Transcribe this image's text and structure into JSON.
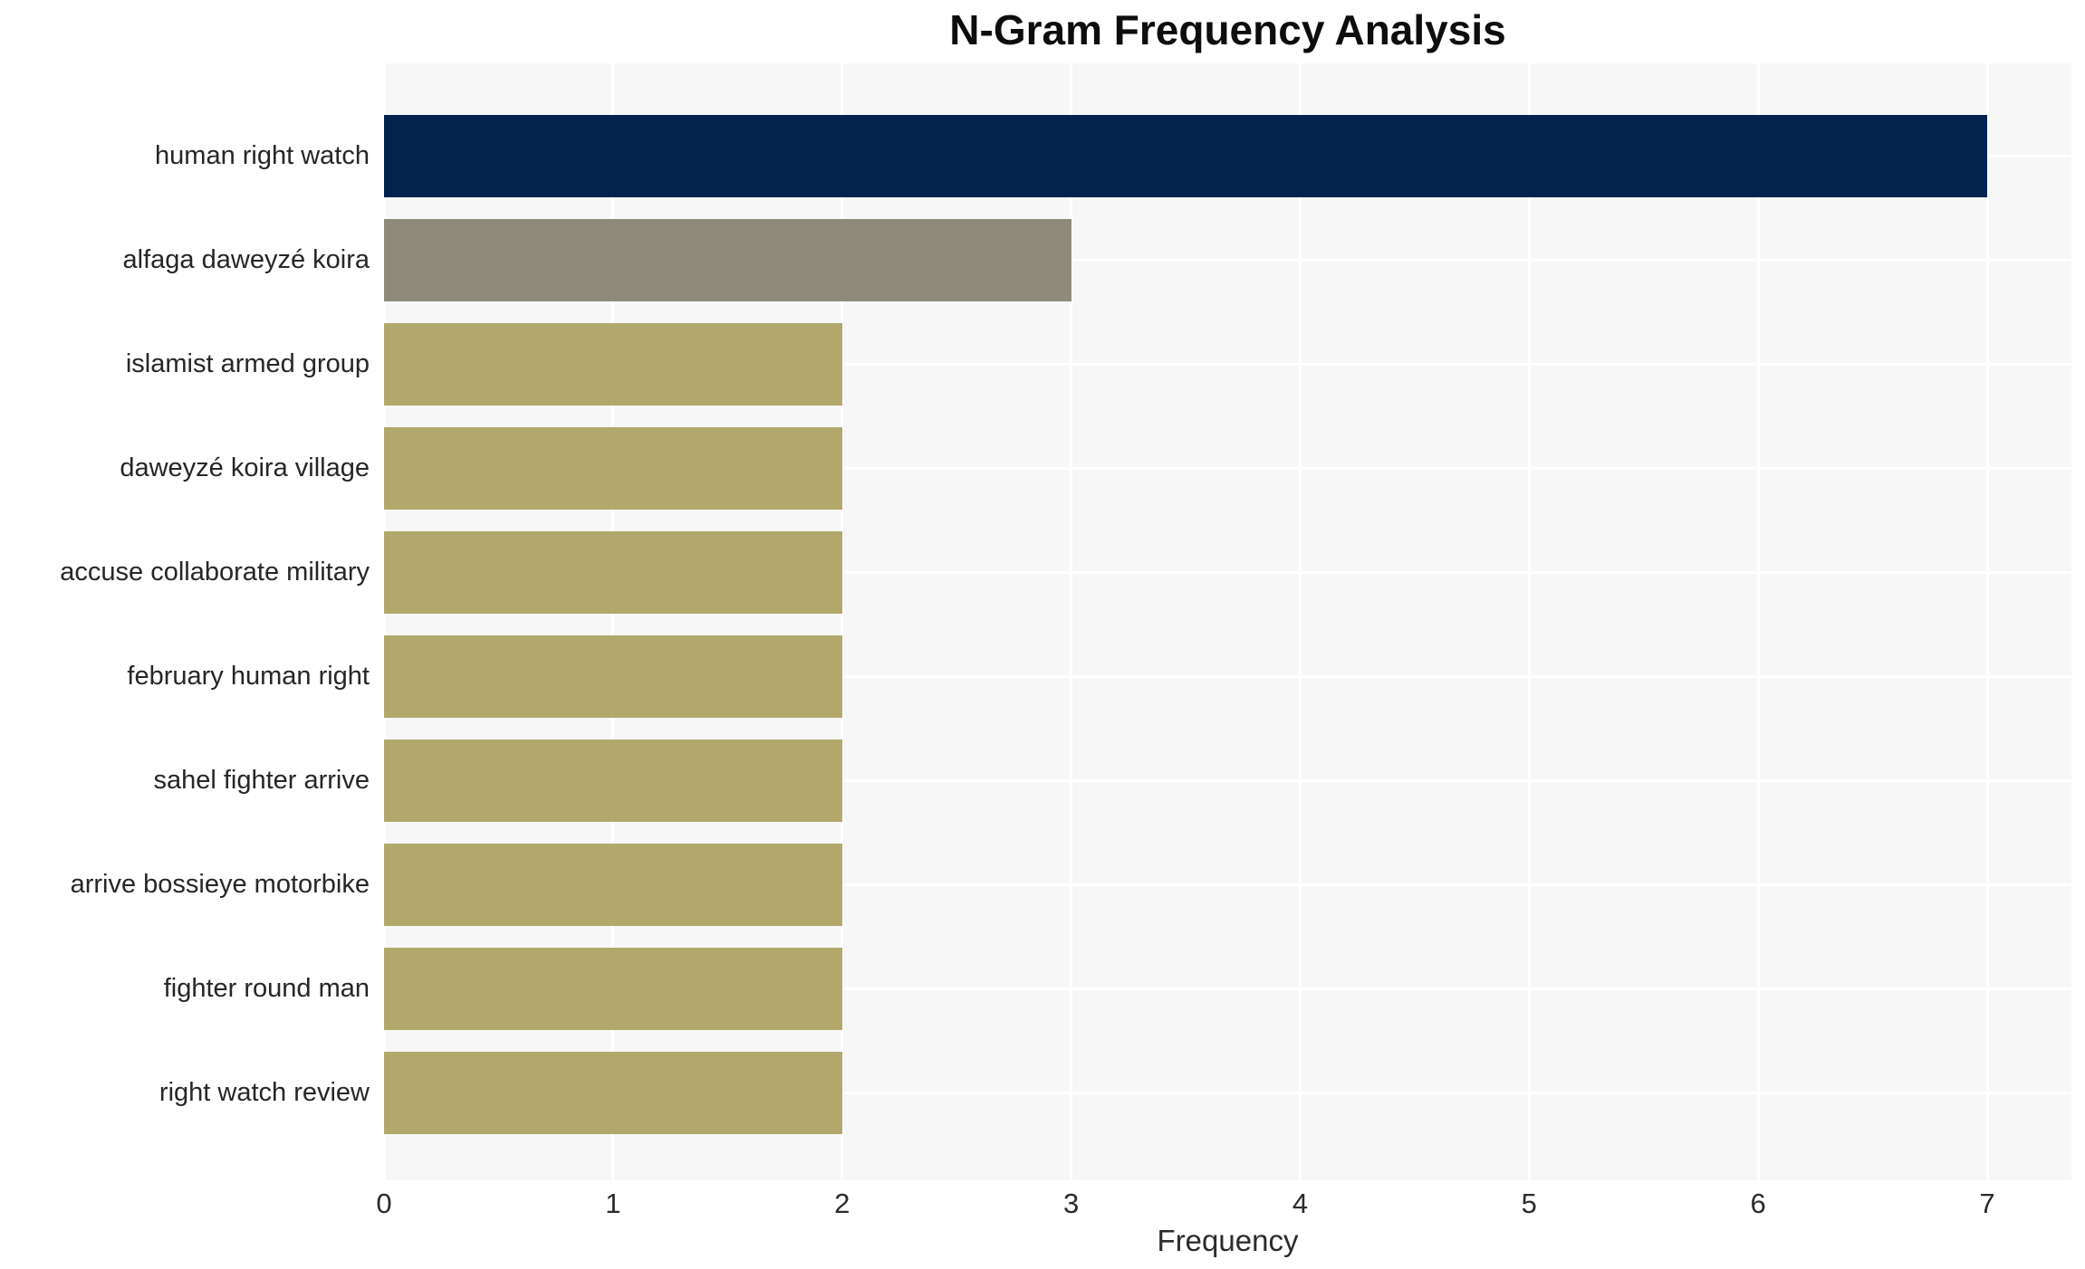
{
  "title": "N-Gram Frequency Analysis",
  "chart_data": {
    "type": "bar",
    "orientation": "horizontal",
    "title": "N-Gram Frequency Analysis",
    "categories": [
      "human right watch",
      "alfaga daweyzé koira",
      "islamist armed group",
      "daweyzé koira village",
      "accuse collaborate military",
      "february human right",
      "sahel fighter arrive",
      "arrive bossieye motorbike",
      "fighter round man",
      "right watch review"
    ],
    "values": [
      7,
      3,
      2,
      2,
      2,
      2,
      2,
      2,
      2,
      2
    ],
    "bar_colors": [
      "#03234e",
      "#8f897b",
      "#b2a86c",
      "#b2a86c",
      "#b2a86c",
      "#b2a86c",
      "#b2a86c",
      "#b2a86c",
      "#b2a86c",
      "#b2a86c"
    ],
    "xlabel": "Frequency",
    "ylabel": "",
    "x_ticks": [
      "0",
      "1",
      "2",
      "3",
      "4",
      "5",
      "6",
      "7"
    ],
    "xlim": [
      0,
      7.37
    ],
    "grid": true,
    "legend": false,
    "panel_color": "#f7f7f7",
    "grid_color": "#ffffff",
    "text_color": "#262626"
  }
}
